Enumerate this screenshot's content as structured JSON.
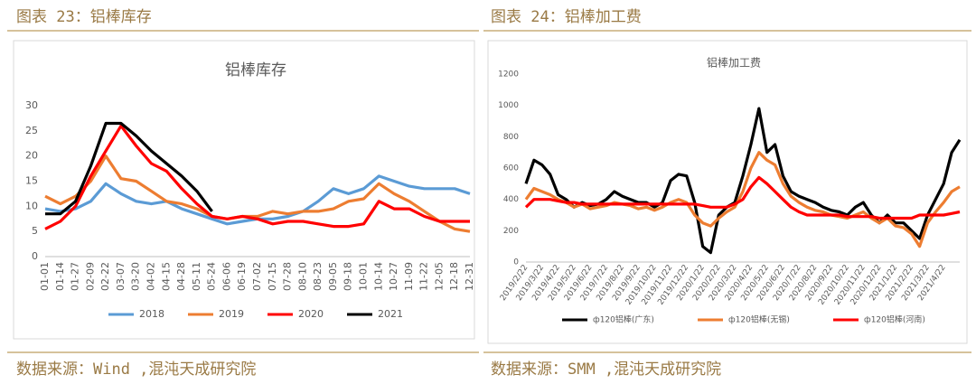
{
  "captions": [
    {
      "title": "图表 23：铝棒库存",
      "source": "数据来源：Wind ,混沌天成研究院"
    },
    {
      "title": "图表 24：铝棒加工费",
      "source": "数据来源：SMM ,混沌天成研究院"
    }
  ],
  "chart_data": [
    {
      "type": "line",
      "title": "铝棒库存",
      "categories": [
        "01-01",
        "01-14",
        "01-27",
        "02-09",
        "02-22",
        "03-07",
        "03-20",
        "04-02",
        "04-15",
        "04-28",
        "05-11",
        "05-24",
        "06-06",
        "06-19",
        "07-02",
        "07-15",
        "07-28",
        "08-10",
        "08-23",
        "09-05",
        "09-18",
        "10-01",
        "10-14",
        "10-27",
        "11-09",
        "11-22",
        "12-05",
        "12-18",
        "12-31"
      ],
      "series": [
        {
          "name": "2018",
          "color": "#5b9bd5",
          "values": [
            9.5,
            9,
            9.5,
            11,
            14.5,
            12.5,
            11,
            10.5,
            11,
            9.5,
            8.5,
            7.5,
            6.5,
            7,
            7.5,
            7.5,
            8,
            9,
            11,
            13.5,
            12.5,
            13.5,
            16,
            15,
            14,
            13.5,
            13.5,
            13.5,
            12.5
          ]
        },
        {
          "name": "2019",
          "color": "#ed7d31",
          "values": [
            12,
            10.5,
            12,
            15,
            20,
            15.5,
            15,
            13,
            11,
            10.5,
            9.5,
            8,
            7.5,
            8,
            8,
            9,
            8.5,
            9,
            9,
            9.5,
            11,
            11.5,
            14.5,
            12.5,
            11,
            9,
            7,
            5.5,
            5
          ]
        },
        {
          "name": "2020",
          "color": "#ff0000",
          "values": [
            5.5,
            7,
            10,
            16,
            21,
            26,
            22,
            18.5,
            17,
            13.5,
            10.5,
            8,
            7.5,
            8,
            7.5,
            6.5,
            7,
            7,
            6.5,
            6,
            6,
            6.5,
            11,
            9.5,
            9.5,
            8,
            7,
            7,
            7
          ]
        },
        {
          "name": "2021",
          "color": "#000000",
          "values": [
            8.5,
            8.5,
            11,
            18,
            26.5,
            26.5,
            24,
            21,
            18.5,
            16,
            13,
            9,
            null,
            null,
            null,
            null,
            null,
            null,
            null,
            null,
            null,
            null,
            null,
            null,
            null,
            null,
            null,
            null,
            null
          ]
        }
      ],
      "ylim": [
        0,
        30
      ],
      "yticks": [
        0,
        5,
        10,
        15,
        20,
        25,
        30
      ],
      "legend": "bottom"
    },
    {
      "type": "line",
      "title": "铝棒加工费",
      "categories": [
        "2019/2/22",
        null,
        "2019/3/22",
        null,
        "2019/4/22",
        null,
        "2019/5/22",
        null,
        "2019/6/22",
        null,
        "2019/7/22",
        null,
        "2019/8/22",
        null,
        "2019/9/22",
        null,
        "2019/10/22",
        null,
        "2019/11/22",
        null,
        "2019/12/22",
        null,
        "2020/1/22",
        null,
        "2020/2/22",
        null,
        "2020/3/22",
        null,
        "2020/4/22",
        null,
        "2020/5/22",
        null,
        "2020/6/22",
        null,
        "2020/7/22",
        null,
        "2020/8/22",
        null,
        "2020/9/22",
        null,
        "2020/10/22",
        null,
        "2020/11/22",
        null,
        "2020/12/22",
        null,
        "2021/1/22",
        null,
        "2021/2/22",
        null,
        "2021/3/22",
        null,
        "2021/4/22",
        null,
        null
      ],
      "series": [
        {
          "name": "ф120铝棒(广东)",
          "color": "#000000",
          "values": [
            500,
            650,
            620,
            560,
            430,
            400,
            350,
            380,
            360,
            370,
            400,
            450,
            420,
            400,
            380,
            380,
            350,
            380,
            520,
            560,
            550,
            380,
            100,
            60,
            300,
            350,
            380,
            550,
            750,
            980,
            700,
            750,
            550,
            450,
            420,
            400,
            380,
            350,
            330,
            320,
            300,
            350,
            380,
            300,
            250,
            300,
            250,
            250,
            200,
            150,
            300,
            400,
            500,
            700,
            780
          ]
        },
        {
          "name": "ф120铝棒(无锡)",
          "color": "#ed7d31",
          "values": [
            400,
            470,
            450,
            430,
            400,
            380,
            350,
            370,
            340,
            350,
            360,
            380,
            370,
            360,
            340,
            350,
            330,
            350,
            380,
            400,
            380,
            300,
            250,
            230,
            280,
            320,
            350,
            450,
            600,
            700,
            650,
            620,
            500,
            420,
            380,
            350,
            330,
            320,
            300,
            290,
            280,
            300,
            320,
            280,
            250,
            280,
            230,
            220,
            180,
            100,
            250,
            320,
            380,
            450,
            480
          ]
        },
        {
          "name": "ф120铝棒(河南)",
          "color": "#ff0000",
          "values": [
            350,
            400,
            400,
            400,
            390,
            380,
            380,
            370,
            370,
            370,
            370,
            370,
            370,
            370,
            370,
            370,
            370,
            370,
            370,
            370,
            370,
            370,
            360,
            350,
            350,
            350,
            370,
            400,
            480,
            540,
            500,
            450,
            400,
            350,
            320,
            300,
            300,
            300,
            300,
            300,
            290,
            290,
            290,
            290,
            280,
            280,
            280,
            280,
            280,
            300,
            300,
            300,
            300,
            310,
            320
          ]
        }
      ],
      "ylim": [
        0,
        1200
      ],
      "yticks": [
        0,
        200,
        400,
        600,
        800,
        1000,
        1200
      ],
      "legend": "bottom"
    }
  ]
}
